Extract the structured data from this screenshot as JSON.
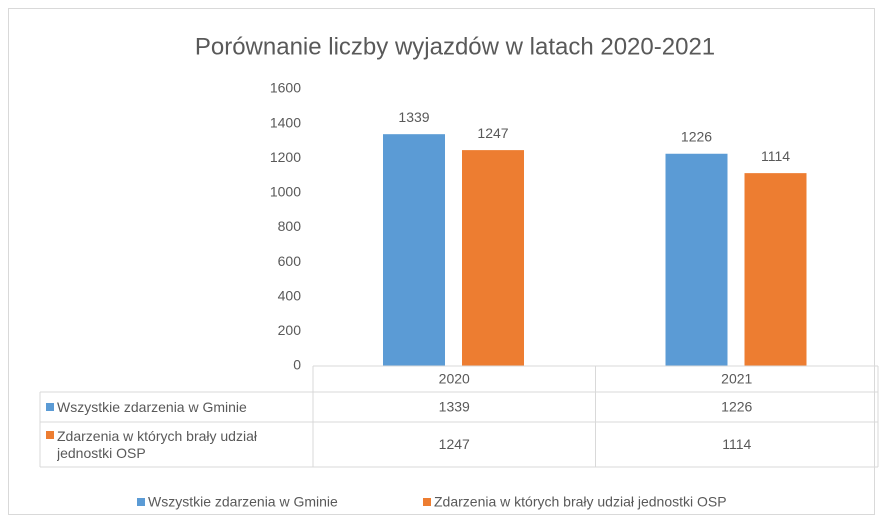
{
  "chart_data": {
    "type": "bar",
    "title": "Porównanie liczby wyjazdów w latach 2020-2021",
    "categories": [
      "2020",
      "2021"
    ],
    "series": [
      {
        "name": "Wszystkie zdarzenia w Gminie",
        "color": "#5b9bd5",
        "values": [
          1339,
          1226
        ]
      },
      {
        "name": "Zdarzenia w których brały udział jednostki OSP",
        "color": "#ed7d31",
        "values": [
          1247,
          1114
        ]
      }
    ],
    "ylim": [
      0,
      1600
    ],
    "yticks": [
      0,
      200,
      400,
      600,
      800,
      1000,
      1200,
      1400,
      1600
    ],
    "grid": false,
    "legend": "bottom",
    "data_table": true
  }
}
